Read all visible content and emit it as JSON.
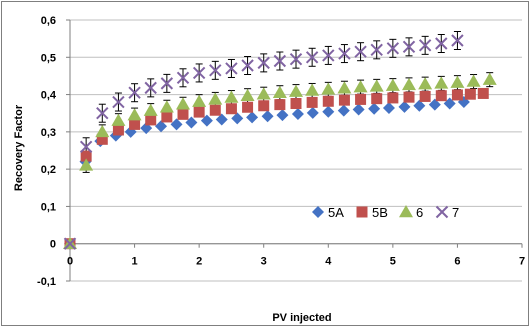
{
  "chart_data": {
    "type": "scatter",
    "title": "",
    "xlabel": "PV injected",
    "ylabel": "Recovery Factor",
    "xlim": [
      0,
      7
    ],
    "ylim": [
      -0.1,
      0.6
    ],
    "x_ticks": [
      0,
      1,
      2,
      3,
      4,
      5,
      6,
      7
    ],
    "x_tick_labels": [
      "0",
      "1",
      "2",
      "3",
      "4",
      "5",
      "6",
      "7"
    ],
    "y_ticks": [
      -0.1,
      0,
      0.1,
      0.2,
      0.3,
      0.4,
      0.5,
      0.6
    ],
    "y_tick_labels": [
      "-0,1",
      "0",
      "0,1",
      "0,2",
      "0,3",
      "0,4",
      "0,5",
      "0,6"
    ],
    "grid": "horizontal",
    "legend_position": "inside-bottom-right",
    "series": [
      {
        "name": "5A",
        "marker": "diamond",
        "color": "#4472c4",
        "x": [
          0,
          0.24,
          0.47,
          0.71,
          0.94,
          1.18,
          1.41,
          1.65,
          1.88,
          2.12,
          2.35,
          2.59,
          2.82,
          3.06,
          3.29,
          3.53,
          3.76,
          4.0,
          4.24,
          4.47,
          4.71,
          4.94,
          5.18,
          5.41,
          5.65,
          5.88,
          6.1
        ],
        "y": [
          0,
          0.22,
          0.275,
          0.29,
          0.3,
          0.31,
          0.315,
          0.32,
          0.325,
          0.33,
          0.333,
          0.336,
          0.339,
          0.342,
          0.345,
          0.348,
          0.351,
          0.354,
          0.357,
          0.36,
          0.362,
          0.364,
          0.367,
          0.37,
          0.373,
          0.376,
          0.38
        ]
      },
      {
        "name": "5B",
        "marker": "square",
        "color": "#c0504d",
        "x": [
          0,
          0.25,
          0.5,
          0.75,
          1.0,
          1.25,
          1.5,
          1.75,
          2.0,
          2.25,
          2.5,
          2.75,
          3.0,
          3.25,
          3.5,
          3.75,
          4.0,
          4.25,
          4.5,
          4.75,
          5.0,
          5.25,
          5.5,
          5.75,
          6.0,
          6.2,
          6.4
        ],
        "y": [
          0,
          0.235,
          0.28,
          0.305,
          0.32,
          0.332,
          0.34,
          0.347,
          0.353,
          0.358,
          0.362,
          0.366,
          0.37,
          0.373,
          0.376,
          0.379,
          0.382,
          0.385,
          0.387,
          0.389,
          0.391,
          0.393,
          0.395,
          0.397,
          0.399,
          0.401,
          0.403
        ]
      },
      {
        "name": "6",
        "marker": "triangle",
        "color": "#9bbb59",
        "x": [
          0,
          0.25,
          0.5,
          0.75,
          1.0,
          1.25,
          1.5,
          1.75,
          2.0,
          2.25,
          2.5,
          2.75,
          3.0,
          3.25,
          3.5,
          3.75,
          4.0,
          4.25,
          4.5,
          4.75,
          5.0,
          5.25,
          5.5,
          5.75,
          6.0,
          6.25,
          6.5
        ],
        "y": [
          0,
          0.21,
          0.3,
          0.33,
          0.345,
          0.357,
          0.366,
          0.374,
          0.381,
          0.387,
          0.392,
          0.397,
          0.401,
          0.405,
          0.408,
          0.411,
          0.414,
          0.417,
          0.42,
          0.422,
          0.424,
          0.426,
          0.428,
          0.43,
          0.432,
          0.435,
          0.44
        ]
      },
      {
        "name": "7",
        "marker": "x",
        "color": "#8064a2",
        "x": [
          0,
          0.25,
          0.5,
          0.75,
          1.0,
          1.25,
          1.5,
          1.75,
          2.0,
          2.25,
          2.5,
          2.75,
          3.0,
          3.25,
          3.5,
          3.75,
          4.0,
          4.25,
          4.5,
          4.75,
          5.0,
          5.25,
          5.5,
          5.75,
          6.0
        ],
        "y": [
          0,
          0.26,
          0.35,
          0.38,
          0.405,
          0.418,
          0.43,
          0.445,
          0.458,
          0.465,
          0.47,
          0.478,
          0.485,
          0.49,
          0.495,
          0.5,
          0.505,
          0.51,
          0.515,
          0.52,
          0.524,
          0.528,
          0.532,
          0.537,
          0.545
        ]
      }
    ],
    "error_bar_color": "#000000"
  }
}
